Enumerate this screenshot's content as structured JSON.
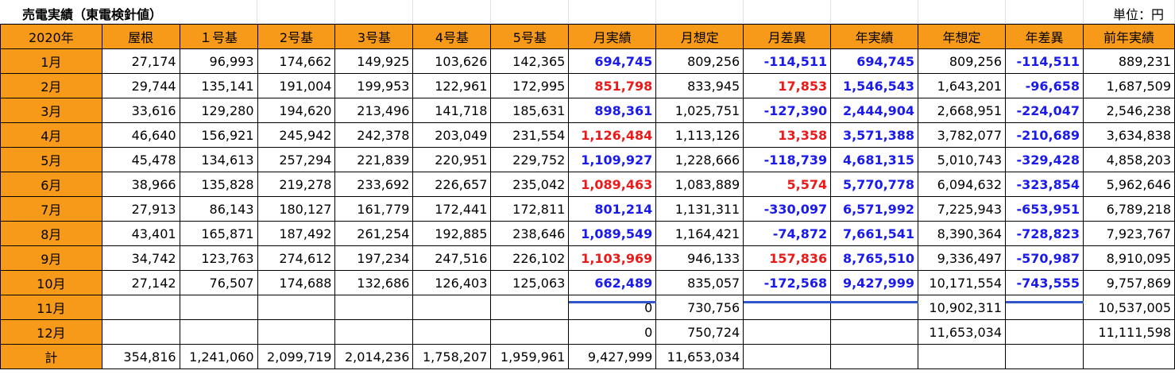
{
  "title": "売電実績（東電検針値）",
  "unit": "単位：円",
  "headers": [
    "2020年",
    "屋根",
    "１号基",
    "2号基",
    "3号基",
    "4号基",
    "5号基",
    "月実績",
    "月想定",
    "月差異",
    "年実績",
    "年想定",
    "年差異",
    "前年実績"
  ],
  "colors": {
    "header_bg": "#f79a1a",
    "positive": "#ea1a1a",
    "negative": "#1a1aeb",
    "underline": "#3355cc"
  },
  "rows": [
    [
      "1月",
      "27,174",
      "96,993",
      "174,662",
      "149,925",
      "103,626",
      "142,365",
      "694,745",
      "809,256",
      "-114,511",
      "694,745",
      "809,256",
      "-114,511",
      "889,231"
    ],
    [
      "2月",
      "29,744",
      "135,141",
      "191,004",
      "199,953",
      "122,961",
      "172,995",
      "851,798",
      "833,945",
      "17,853",
      "1,546,543",
      "1,643,201",
      "-96,658",
      "1,687,509"
    ],
    [
      "3月",
      "33,616",
      "129,280",
      "194,620",
      "213,496",
      "141,718",
      "185,631",
      "898,361",
      "1,025,751",
      "-127,390",
      "2,444,904",
      "2,668,951",
      "-224,047",
      "2,546,238"
    ],
    [
      "4月",
      "46,640",
      "156,921",
      "245,942",
      "242,378",
      "203,049",
      "231,554",
      "1,126,484",
      "1,113,126",
      "13,358",
      "3,571,388",
      "3,782,077",
      "-210,689",
      "3,634,838"
    ],
    [
      "5月",
      "45,478",
      "134,613",
      "257,294",
      "221,839",
      "220,951",
      "229,752",
      "1,109,927",
      "1,228,666",
      "-118,739",
      "4,681,315",
      "5,010,743",
      "-329,428",
      "4,858,203"
    ],
    [
      "6月",
      "38,966",
      "135,828",
      "219,278",
      "233,692",
      "226,657",
      "235,042",
      "1,089,463",
      "1,083,889",
      "5,574",
      "5,770,778",
      "6,094,632",
      "-323,854",
      "5,962,646"
    ],
    [
      "7月",
      "27,913",
      "86,143",
      "180,127",
      "161,779",
      "172,441",
      "172,811",
      "801,214",
      "1,131,311",
      "-330,097",
      "6,571,992",
      "7,225,943",
      "-653,951",
      "6,789,218"
    ],
    [
      "8月",
      "43,401",
      "165,871",
      "187,492",
      "261,254",
      "192,885",
      "238,646",
      "1,089,549",
      "1,164,421",
      "-74,872",
      "7,661,541",
      "8,390,364",
      "-728,823",
      "7,923,767"
    ],
    [
      "9月",
      "34,742",
      "123,763",
      "274,612",
      "197,234",
      "247,516",
      "226,102",
      "1,103,969",
      "946,133",
      "157,836",
      "8,765,510",
      "9,336,497",
      "-570,987",
      "8,910,095"
    ],
    [
      "10月",
      "27,142",
      "76,507",
      "174,688",
      "132,686",
      "126,403",
      "125,063",
      "662,489",
      "835,057",
      "-172,568",
      "9,427,999",
      "10,171,554",
      "-743,555",
      "9,757,869"
    ],
    [
      "11月",
      "",
      "",
      "",
      "",
      "",
      "",
      "0",
      "730,756",
      "",
      "",
      "10,902,311",
      "",
      "10,537,005"
    ],
    [
      "12月",
      "",
      "",
      "",
      "",
      "",
      "",
      "0",
      "750,724",
      "",
      "",
      "11,653,034",
      "",
      "11,111,598"
    ],
    [
      "計",
      "354,816",
      "1,241,060",
      "2,099,719",
      "2,014,236",
      "1,758,207",
      "1,959,961",
      "9,427,999",
      "11,653,034",
      "",
      "",
      "",
      "",
      ""
    ]
  ],
  "emphasis": [
    [
      "",
      "",
      "",
      "",
      "",
      "",
      "",
      "blue",
      "",
      "blue",
      "blue",
      "",
      "blue",
      ""
    ],
    [
      "",
      "",
      "",
      "",
      "",
      "",
      "",
      "red",
      "",
      "red",
      "blue",
      "",
      "blue",
      ""
    ],
    [
      "",
      "",
      "",
      "",
      "",
      "",
      "",
      "blue",
      "",
      "blue",
      "blue",
      "",
      "blue",
      ""
    ],
    [
      "",
      "",
      "",
      "",
      "",
      "",
      "",
      "red",
      "",
      "red",
      "blue",
      "",
      "blue",
      ""
    ],
    [
      "",
      "",
      "",
      "",
      "",
      "",
      "",
      "blue",
      "",
      "blue",
      "blue",
      "",
      "blue",
      ""
    ],
    [
      "",
      "",
      "",
      "",
      "",
      "",
      "",
      "red",
      "",
      "red",
      "blue",
      "",
      "blue",
      ""
    ],
    [
      "",
      "",
      "",
      "",
      "",
      "",
      "",
      "blue",
      "",
      "blue",
      "blue",
      "",
      "blue",
      ""
    ],
    [
      "",
      "",
      "",
      "",
      "",
      "",
      "",
      "blue",
      "",
      "blue",
      "blue",
      "",
      "blue",
      ""
    ],
    [
      "",
      "",
      "",
      "",
      "",
      "",
      "",
      "red",
      "",
      "red",
      "blue",
      "",
      "blue",
      ""
    ],
    [
      "",
      "",
      "",
      "",
      "",
      "",
      "",
      "blue",
      "",
      "blue",
      "blue",
      "",
      "blue",
      ""
    ],
    [
      "",
      "",
      "",
      "",
      "",
      "",
      "",
      "",
      "",
      "",
      "",
      "",
      "",
      ""
    ],
    [
      "",
      "",
      "",
      "",
      "",
      "",
      "",
      "",
      "",
      "",
      "",
      "",
      "",
      ""
    ],
    [
      "",
      "",
      "",
      "",
      "",
      "",
      "",
      "",
      "",
      "",
      "",
      "",
      "",
      ""
    ]
  ]
}
